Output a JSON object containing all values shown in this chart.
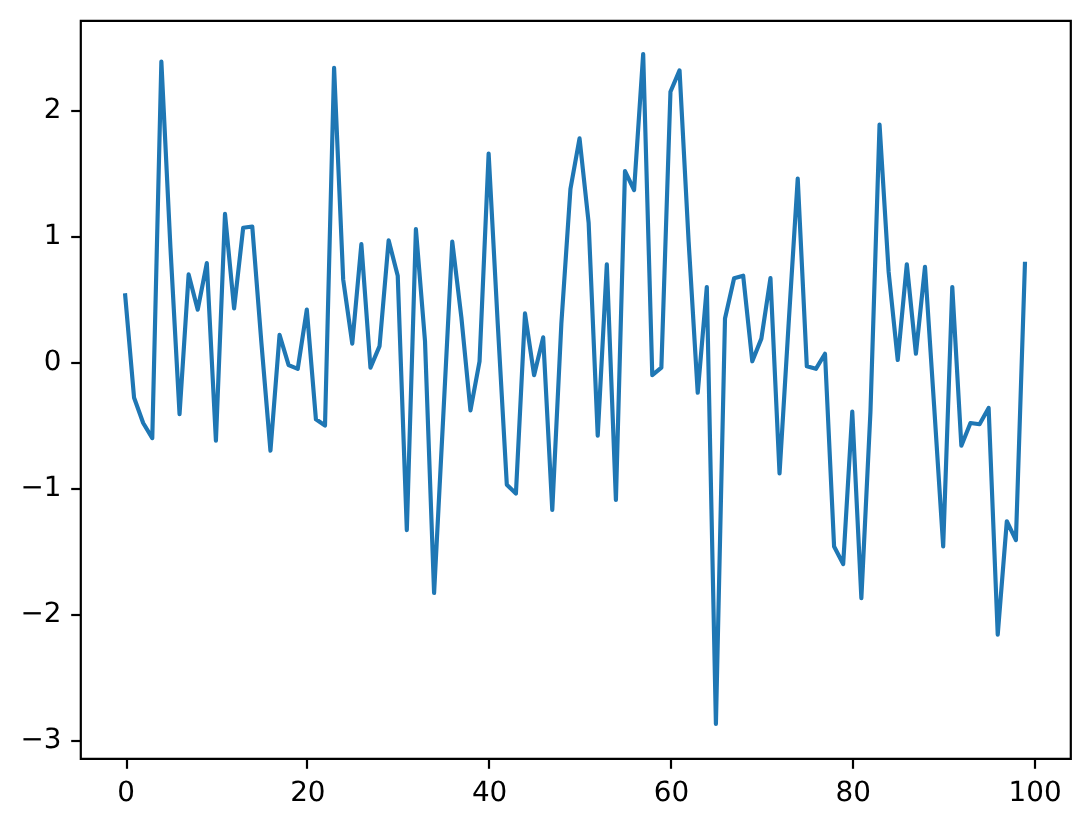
{
  "chart_data": {
    "type": "line",
    "color": "#1f77b4",
    "x": [
      0,
      1,
      2,
      3,
      4,
      5,
      6,
      7,
      8,
      9,
      10,
      11,
      12,
      13,
      14,
      15,
      16,
      17,
      18,
      19,
      20,
      21,
      22,
      23,
      24,
      25,
      26,
      27,
      28,
      29,
      30,
      31,
      32,
      33,
      34,
      35,
      36,
      37,
      38,
      39,
      40,
      41,
      42,
      43,
      44,
      45,
      46,
      47,
      48,
      49,
      50,
      51,
      52,
      53,
      54,
      55,
      56,
      57,
      58,
      59,
      60,
      61,
      62,
      63,
      64,
      65,
      66,
      67,
      68,
      69,
      70,
      71,
      72,
      73,
      74,
      75,
      76,
      77,
      78,
      79,
      80,
      81,
      82,
      83,
      84,
      85,
      86,
      87,
      88,
      89,
      90,
      91,
      92,
      93,
      94,
      95,
      96,
      97,
      98,
      99
    ],
    "values": [
      0.54,
      -0.29,
      -0.49,
      -0.61,
      2.38,
      0.9,
      -0.42,
      0.69,
      0.41,
      0.78,
      -0.63,
      1.17,
      0.42,
      1.06,
      1.07,
      0.15,
      -0.71,
      0.21,
      -0.03,
      -0.06,
      0.41,
      -0.46,
      -0.51,
      2.33,
      0.65,
      0.14,
      0.93,
      -0.05,
      0.12,
      0.96,
      0.68,
      -1.34,
      1.05,
      0.16,
      -1.84,
      -0.45,
      0.95,
      0.35,
      -0.39,
      0.0,
      1.65,
      0.3,
      -0.98,
      -1.05,
      0.38,
      -0.11,
      0.19,
      -1.18,
      0.3,
      1.37,
      1.77,
      1.1,
      -0.59,
      0.77,
      -1.1,
      1.51,
      1.36,
      2.44,
      -0.11,
      -0.05,
      2.14,
      2.31,
      0.95,
      -0.25,
      0.59,
      -2.88,
      0.34,
      0.66,
      0.68,
      0.0,
      0.18,
      0.66,
      -0.89,
      0.3,
      1.45,
      -0.04,
      -0.06,
      0.06,
      -1.47,
      -1.61,
      -0.4,
      -1.88,
      -0.4,
      1.88,
      0.71,
      0.01,
      0.77,
      0.06,
      0.75,
      -0.35,
      -1.47,
      0.59,
      -0.67,
      -0.49,
      -0.5,
      -0.37,
      -2.17,
      -1.27,
      -1.42,
      0.79
    ],
    "xlim": [
      -4.95,
      103.95
    ],
    "ylim": [
      -3.15,
      2.71
    ],
    "xticks": [
      0,
      20,
      40,
      60,
      80,
      100
    ],
    "yticks": [
      {
        "value": -3,
        "label": "−3"
      },
      {
        "value": -2,
        "label": "−2"
      },
      {
        "value": -1,
        "label": "−1"
      },
      0,
      1,
      2
    ]
  }
}
